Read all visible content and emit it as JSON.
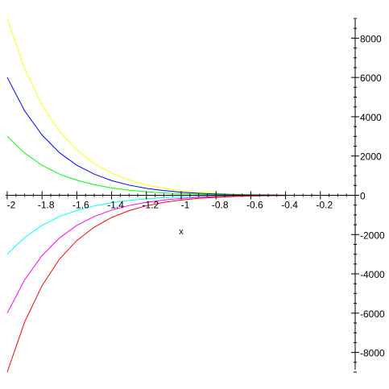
{
  "chart_data": {
    "type": "line",
    "title": "",
    "xlabel": "x",
    "ylabel": "",
    "xlim": [
      -2,
      0
    ],
    "ylim": [
      -9000,
      9000
    ],
    "grid": false,
    "x_ticks": [
      -2,
      -1.8,
      -1.6,
      -1.4,
      -1.2,
      -1,
      -0.8,
      -0.6,
      -0.4,
      -0.2
    ],
    "x_tick_labels": [
      "-2",
      "-1.8",
      "-1.6",
      "-1.4",
      "-1.2",
      "-1",
      "-0.8",
      "-0.6",
      "-0.4",
      "-0.2"
    ],
    "y_ticks": [
      -8000,
      -6000,
      -4000,
      -2000,
      0,
      2000,
      4000,
      6000,
      8000
    ],
    "y_tick_labels": [
      "-8000",
      "-6000",
      "-4000",
      "-2000",
      "0",
      "2000",
      "4000",
      "6000",
      "8000"
    ],
    "x_minor_step": 0.05,
    "y_minor_step": 500,
    "curves_visible_until_x": -0.4,
    "series": [
      {
        "color": "#ffff00",
        "x": [
          -2,
          -1.9,
          -1.8,
          -1.7,
          -1.6,
          -1.5,
          -1.4,
          -1.3,
          -1.2,
          -1.1,
          -1.0,
          -0.9,
          -0.8,
          -0.7,
          -0.6,
          -0.5,
          -0.4
        ],
        "y": [
          9000,
          6450,
          4600,
          3250,
          2300,
          1620,
          1130,
          780,
          530,
          360,
          240,
          155,
          100,
          60,
          35,
          20,
          10
        ]
      },
      {
        "color": "#0000ff",
        "x": [
          -2,
          -1.9,
          -1.8,
          -1.7,
          -1.6,
          -1.5,
          -1.4,
          -1.3,
          -1.2,
          -1.1,
          -1.0,
          -0.9,
          -0.8,
          -0.7,
          -0.6,
          -0.5,
          -0.4
        ],
        "y": [
          6000,
          4300,
          3070,
          2170,
          1530,
          1080,
          750,
          520,
          355,
          240,
          160,
          105,
          65,
          40,
          24,
          13,
          7
        ]
      },
      {
        "color": "#00ff00",
        "x": [
          -2,
          -1.9,
          -1.8,
          -1.7,
          -1.6,
          -1.5,
          -1.4,
          -1.3,
          -1.2,
          -1.1,
          -1.0,
          -0.9,
          -0.8,
          -0.7,
          -0.6,
          -0.5,
          -0.4
        ],
        "y": [
          3000,
          2150,
          1530,
          1080,
          770,
          540,
          375,
          260,
          178,
          120,
          80,
          52,
          33,
          20,
          12,
          7,
          3
        ]
      },
      {
        "color": "#00ffff",
        "x": [
          -2,
          -1.9,
          -1.8,
          -1.7,
          -1.6,
          -1.5,
          -1.4,
          -1.3,
          -1.2,
          -1.1,
          -1.0,
          -0.9,
          -0.8,
          -0.7,
          -0.6,
          -0.5,
          -0.4
        ],
        "y": [
          -3000,
          -2150,
          -1530,
          -1080,
          -770,
          -540,
          -375,
          -260,
          -178,
          -120,
          -80,
          -52,
          -33,
          -20,
          -12,
          -7,
          -3
        ]
      },
      {
        "color": "#ff00ff",
        "x": [
          -2,
          -1.9,
          -1.8,
          -1.7,
          -1.6,
          -1.5,
          -1.4,
          -1.3,
          -1.2,
          -1.1,
          -1.0,
          -0.9,
          -0.8,
          -0.7,
          -0.6,
          -0.5,
          -0.4
        ],
        "y": [
          -6000,
          -4300,
          -3070,
          -2170,
          -1530,
          -1080,
          -750,
          -520,
          -355,
          -240,
          -160,
          -105,
          -65,
          -40,
          -24,
          -13,
          -7
        ]
      },
      {
        "color": "#ff0000",
        "x": [
          -2,
          -1.9,
          -1.8,
          -1.7,
          -1.6,
          -1.5,
          -1.4,
          -1.3,
          -1.2,
          -1.1,
          -1.0,
          -0.9,
          -0.8,
          -0.7,
          -0.6,
          -0.5,
          -0.4
        ],
        "y": [
          -9000,
          -6450,
          -4600,
          -3250,
          -2300,
          -1620,
          -1130,
          -780,
          -530,
          -360,
          -240,
          -155,
          -100,
          -60,
          -35,
          -20,
          -10
        ]
      }
    ]
  }
}
